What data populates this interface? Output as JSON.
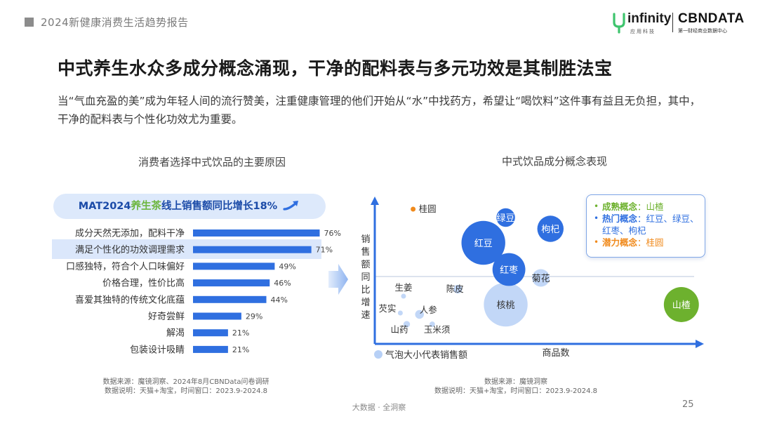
{
  "header": {
    "report_title": "2024新健康消费生活趋势报告",
    "logo_infinity": "infinity",
    "logo_infinity_sub": "应用科技",
    "logo_cbn": "CBNDATA",
    "logo_cbn_sub": "第一财经商业数据中心"
  },
  "main_title": "中式养生水众多成分概念涌现，干净的配料表与多元功效是其制胜法宝",
  "intro": "当“气血充盈的美”成为年轻人间的流行赞美，注重健康管理的他们开始从“水”中找药方，希望让“喝饮料”这件事有益且无负担，其中，干净的配料表与个性化功效尤为重要。",
  "mat_banner": {
    "prefix": "MAT2024",
    "highlight": "养生茶",
    "middle": "线上销售额同比增长",
    "growth": "18%"
  },
  "colors": {
    "bar": "#2f6fe0",
    "highlight_row": "#dbe7fb",
    "green": "#6db12e",
    "orange": "#f08a1c",
    "bubble_light": "#b7d0f6",
    "bubble_dark": "#2f6fe0"
  },
  "chart_data": [
    {
      "type": "bar",
      "orientation": "horizontal",
      "title": "消费者选择中式饮品的主要原因",
      "categories": [
        "成分天然无添加，配料干净",
        "满足个性化的功效调理需求",
        "口感独特，符合个人口味偏好",
        "价格合理，性价比高",
        "喜爱其独特的传统文化底蕴",
        "好奇尝鲜",
        "解渴",
        "包装设计吸睛"
      ],
      "values": [
        76,
        71,
        49,
        46,
        44,
        29,
        21,
        21
      ],
      "value_labels": [
        "76%",
        "71%",
        "49%",
        "46%",
        "44%",
        "29%",
        "21%",
        "21%"
      ],
      "highlighted_category": "满足个性化的功效调理需求",
      "unit": "%"
    },
    {
      "type": "scatter",
      "subtype": "bubble",
      "title": "中式饮品成分概念表现",
      "xlabel": "商品数",
      "ylabel": "销售额同比增速",
      "size_legend": "气泡大小代表销售额",
      "xlim": [
        0,
        100
      ],
      "ylim": [
        0,
        100
      ],
      "reference_y": 48,
      "points": [
        {
          "label": "桂圆",
          "x": 12,
          "y": 96,
          "size": 2,
          "group": "潜力概念"
        },
        {
          "label": "绿豆",
          "x": 41,
          "y": 90,
          "size": 17,
          "group": "热门概念"
        },
        {
          "label": "枸杞",
          "x": 55,
          "y": 82,
          "size": 24,
          "group": "热门概念"
        },
        {
          "label": "红豆",
          "x": 34,
          "y": 72,
          "size": 40,
          "group": "热门概念"
        },
        {
          "label": "红枣",
          "x": 42,
          "y": 53,
          "size": 30,
          "group": "热门概念"
        },
        {
          "label": "菊花",
          "x": 52,
          "y": 47,
          "size": 16,
          "group": "其他"
        },
        {
          "label": "陈皮",
          "x": 26,
          "y": 39,
          "size": 8,
          "group": "其他"
        },
        {
          "label": "生姜",
          "x": 9,
          "y": 34,
          "size": 3,
          "group": "其他"
        },
        {
          "label": "核桃",
          "x": 41,
          "y": 28,
          "size": 40,
          "group": "其他"
        },
        {
          "label": "山楂",
          "x": 96,
          "y": 28,
          "size": 32,
          "group": "成熟概念"
        },
        {
          "label": "芡实",
          "x": 8,
          "y": 22,
          "size": 3,
          "group": "其他"
        },
        {
          "label": "人参",
          "x": 14,
          "y": 21,
          "size": 8,
          "group": "其他"
        },
        {
          "label": "山药",
          "x": 10,
          "y": 14,
          "size": 6,
          "group": "其他"
        },
        {
          "label": "玉米须",
          "x": 18,
          "y": 14,
          "size": 5,
          "group": "其他"
        }
      ]
    }
  ],
  "legend": {
    "mature_label": "成熟概念",
    "mature_value": "山楂",
    "hot_label": "热门概念",
    "hot_value": "红豆、绿豆、红枣、枸杞",
    "potential_label": "潜力概念",
    "potential_value": "桂圆"
  },
  "source_left": {
    "line1": "数据来源：魔镜洞察、2024年8月CBNData问卷调研",
    "line2": "数据说明：天猫+淘宝，时间窗口：2023.9-2024.8"
  },
  "source_right": {
    "line1": "数据来源：魔镜洞察",
    "line2": "数据说明：天猫+淘宝，时间窗口：2023.9-2024.8"
  },
  "footer": {
    "center": "大数据 · 全洞察",
    "page": "25"
  }
}
